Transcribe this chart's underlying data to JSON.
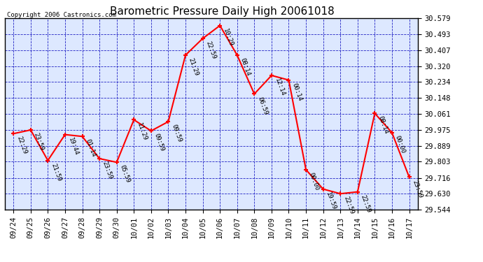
{
  "title": "Barometric Pressure Daily High 20061018",
  "copyright": "Copyright 2006 Castronics.com",
  "x_labels": [
    "09/24",
    "09/25",
    "09/26",
    "09/27",
    "09/28",
    "09/29",
    "09/30",
    "10/01",
    "10/02",
    "10/03",
    "10/04",
    "10/05",
    "10/06",
    "10/07",
    "10/08",
    "10/09",
    "10/10",
    "10/11",
    "10/12",
    "10/13",
    "10/14",
    "10/15",
    "10/16",
    "10/17"
  ],
  "y_values": [
    29.955,
    29.975,
    29.81,
    29.95,
    29.94,
    29.82,
    29.8,
    30.03,
    29.97,
    30.02,
    30.38,
    30.47,
    30.54,
    30.38,
    30.17,
    30.27,
    30.245,
    29.76,
    29.655,
    29.63,
    29.64,
    30.065,
    29.96,
    29.72
  ],
  "point_labels": [
    "22:29",
    "23:59",
    "21:59",
    "19:44",
    "01:14",
    "23:59",
    "05:59",
    "11:29",
    "09:59",
    "09:59",
    "21:29",
    "22:59",
    "10:29",
    "08:14",
    "06:59",
    "12:14",
    "00:14",
    "00:00",
    "19:59",
    "22:59",
    "22:59",
    "08:14",
    "00:00",
    "23:59"
  ],
  "y_ticks": [
    29.544,
    29.63,
    29.716,
    29.803,
    29.889,
    29.975,
    30.061,
    30.148,
    30.234,
    30.32,
    30.407,
    30.493,
    30.579
  ],
  "line_color": "#ff0000",
  "marker_color": "#ff0000",
  "grid_color": "#0000bb",
  "background_color": "#ffffff",
  "plot_bg_color": "#dde8ff",
  "title_fontsize": 11,
  "copyright_fontsize": 6.5,
  "label_fontsize": 6.5,
  "tick_fontsize": 7.5
}
